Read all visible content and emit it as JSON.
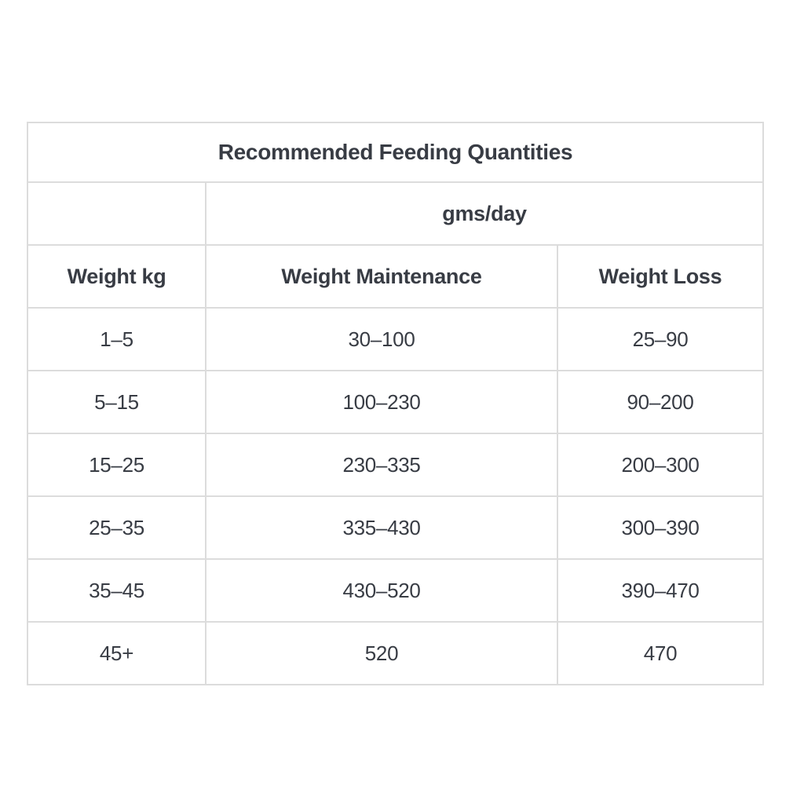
{
  "table": {
    "title": "Recommended Feeding Quantities",
    "unit_header": "gms/day",
    "columns": [
      "Weight kg",
      "Weight Maintenance",
      "Weight Loss"
    ],
    "rows": [
      [
        "1–5",
        "30–100",
        "25–90"
      ],
      [
        "5–15",
        "100–230",
        "90–200"
      ],
      [
        "15–25",
        "230–335",
        "200–300"
      ],
      [
        "25–35",
        "335–430",
        "300–390"
      ],
      [
        "35–45",
        "430–520",
        "390–470"
      ],
      [
        "45+",
        "520",
        "470"
      ]
    ],
    "colors": {
      "text": "#383c44",
      "border": "#dcdcdc",
      "background": "#ffffff"
    }
  }
}
